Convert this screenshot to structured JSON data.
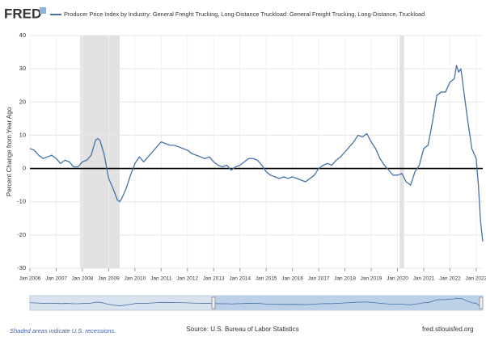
{
  "logo": "FRED",
  "chart_data": {
    "type": "line",
    "title": "Producer Price Index by Industry: General Freight Trucking, Long-Distance Truckload: General Freight Trucking, Long-Distance, Truckload",
    "y_label": "Percent Change from Year Ago",
    "note": "Shaded areas indicate U.S. recessions.",
    "source": "Source: U.S. Bureau of Labor Statistics",
    "site": "fred.stlouisfed.org",
    "grid": true,
    "reference_line": 0,
    "recessions": [
      [
        "2007-12",
        "2009-06"
      ],
      [
        "2020-02",
        "2020-04"
      ]
    ],
    "xlim": [
      "2006-01",
      "2023-04"
    ],
    "ylim": [
      -30,
      40
    ],
    "yticks": [
      -30,
      -20,
      -10,
      0,
      10,
      20,
      30,
      40
    ],
    "xticks": [
      {
        "value": "2006-01",
        "label": "Jan 2006"
      },
      {
        "value": "2007-01",
        "label": "Jan 2007"
      },
      {
        "value": "2008-01",
        "label": "Jan 2008"
      },
      {
        "value": "2009-01",
        "label": "Jan 2009"
      },
      {
        "value": "2010-01",
        "label": "Jan 2010"
      },
      {
        "value": "2011-01",
        "label": "Jan 2011"
      },
      {
        "value": "2012-01",
        "label": "Jan 2012"
      },
      {
        "value": "2013-01",
        "label": "Jan 2013"
      },
      {
        "value": "2014-01",
        "label": "Jan 2014"
      },
      {
        "value": "2015-01",
        "label": "Jan 2015"
      },
      {
        "value": "2016-01",
        "label": "Jan 2016"
      },
      {
        "value": "2017-01",
        "label": "Jan 2017"
      },
      {
        "value": "2018-01",
        "label": "Jan 2018"
      },
      {
        "value": "2019-01",
        "label": "Jan 2019"
      },
      {
        "value": "2020-01",
        "label": "Jan 2020"
      },
      {
        "value": "2021-01",
        "label": "Jan 2021"
      },
      {
        "value": "2022-01",
        "label": "Jan 2022"
      },
      {
        "value": "2023-01",
        "label": "Jan 2023"
      }
    ],
    "x": [
      "2006-01",
      "2006-03",
      "2006-05",
      "2006-07",
      "2006-09",
      "2006-11",
      "2007-01",
      "2007-03",
      "2007-05",
      "2007-07",
      "2007-09",
      "2007-11",
      "2008-01",
      "2008-03",
      "2008-05",
      "2008-07",
      "2008-08",
      "2008-09",
      "2008-11",
      "2009-01",
      "2009-03",
      "2009-05",
      "2009-06",
      "2009-07",
      "2009-09",
      "2009-11",
      "2010-01",
      "2010-03",
      "2010-05",
      "2010-07",
      "2010-09",
      "2010-11",
      "2011-01",
      "2011-03",
      "2011-05",
      "2011-07",
      "2011-09",
      "2011-11",
      "2012-01",
      "2012-03",
      "2012-05",
      "2012-07",
      "2012-09",
      "2012-11",
      "2013-01",
      "2013-03",
      "2013-05",
      "2013-07",
      "2013-09",
      "2013-11",
      "2014-01",
      "2014-03",
      "2014-05",
      "2014-07",
      "2014-09",
      "2014-11",
      "2015-01",
      "2015-03",
      "2015-05",
      "2015-07",
      "2015-09",
      "2015-11",
      "2016-01",
      "2016-03",
      "2016-05",
      "2016-07",
      "2016-09",
      "2016-11",
      "2017-01",
      "2017-03",
      "2017-05",
      "2017-07",
      "2017-09",
      "2017-11",
      "2018-01",
      "2018-03",
      "2018-05",
      "2018-07",
      "2018-09",
      "2018-11",
      "2019-01",
      "2019-03",
      "2019-05",
      "2019-07",
      "2019-09",
      "2019-11",
      "2020-01",
      "2020-03",
      "2020-05",
      "2020-07",
      "2020-09",
      "2020-11",
      "2021-01",
      "2021-03",
      "2021-05",
      "2021-07",
      "2021-09",
      "2021-11",
      "2022-01",
      "2022-03",
      "2022-04",
      "2022-05",
      "2022-06",
      "2022-07",
      "2022-09",
      "2022-11",
      "2023-01",
      "2023-02",
      "2023-03",
      "2023-04"
    ],
    "series": [
      {
        "name": "Producer Price Index by Industry: General Freight Trucking, Long-Distance Truckload: General Freight Trucking, Long-Distance, Truckload",
        "color": "#4572a7",
        "values": [
          6,
          5.5,
          4,
          3,
          3.5,
          4,
          3,
          1.5,
          2.5,
          2,
          0.5,
          0.5,
          2,
          2.5,
          4,
          8.5,
          9,
          8.5,
          4,
          -3,
          -6,
          -9.5,
          -10,
          -9,
          -6,
          -2,
          1.5,
          3.5,
          2,
          3.5,
          5,
          6.5,
          8,
          7.5,
          7,
          7,
          6.5,
          6,
          5.5,
          4.5,
          4,
          3.5,
          3,
          3.5,
          2,
          1,
          0.5,
          1,
          -0.5,
          0.5,
          1,
          2,
          3,
          3,
          2.5,
          1,
          -1,
          -2,
          -2.5,
          -3,
          -2.5,
          -3,
          -2.5,
          -3,
          -3.5,
          -4,
          -3,
          -2,
          0,
          1,
          1.5,
          1,
          2.5,
          3.5,
          5,
          6.5,
          8,
          10,
          9.5,
          10.5,
          8,
          6,
          3,
          1,
          -0.5,
          -2,
          -2,
          -1.5,
          -4,
          -5,
          -1,
          1,
          6,
          7,
          14,
          22,
          23,
          23,
          26,
          27,
          31,
          29,
          30,
          25,
          15,
          6,
          3,
          -5,
          -16,
          -22
        ]
      }
    ]
  }
}
